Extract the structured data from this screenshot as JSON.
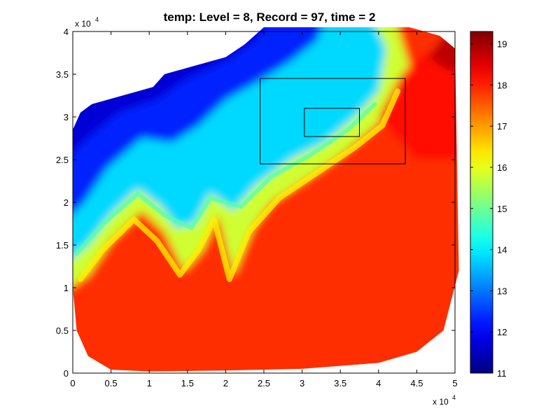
{
  "chart_data": {
    "type": "heatmap",
    "title": "temp:    Level = 8,    Record = 97,    time = 2",
    "xlabel": "",
    "ylabel": "",
    "x_multiplier_label": "x 10",
    "x_multiplier_exp": "4",
    "y_multiplier_label": "x 10",
    "y_multiplier_exp": "4",
    "xlim": [
      0,
      50000
    ],
    "ylim": [
      0,
      40000
    ],
    "x_ticks": [
      0,
      5000,
      10000,
      15000,
      20000,
      25000,
      30000,
      35000,
      40000,
      45000,
      50000
    ],
    "x_tick_labels": [
      "0",
      "0.5",
      "1",
      "1.5",
      "2",
      "2.5",
      "3",
      "3.5",
      "4",
      "4.5",
      "5"
    ],
    "y_ticks": [
      0,
      5000,
      10000,
      15000,
      20000,
      25000,
      30000,
      35000,
      40000
    ],
    "y_tick_labels": [
      "0",
      "0.5",
      "1",
      "1.5",
      "2",
      "2.5",
      "3",
      "3.5",
      "4"
    ],
    "colorbar": {
      "colormap": "jet",
      "clim": [
        11,
        19.3
      ],
      "ticks": [
        11,
        12,
        13,
        14,
        15,
        16,
        17,
        18,
        19
      ],
      "tick_labels": [
        "11",
        "12",
        "13",
        "14",
        "15",
        "16",
        "17",
        "18",
        "19"
      ]
    },
    "domain_outline": [
      [
        0,
        28500
      ],
      [
        1000,
        30500
      ],
      [
        2500,
        31500
      ],
      [
        6500,
        32500
      ],
      [
        10500,
        33500
      ],
      [
        12000,
        35000
      ],
      [
        16000,
        36000
      ],
      [
        20000,
        37000
      ],
      [
        22500,
        38500
      ],
      [
        25000,
        40500
      ],
      [
        35000,
        40500
      ],
      [
        44000,
        40500
      ],
      [
        48000,
        39500
      ],
      [
        50000,
        38000
      ],
      [
        50500,
        12000
      ],
      [
        48500,
        5000
      ],
      [
        45000,
        2500
      ],
      [
        40000,
        1200
      ],
      [
        30000,
        500
      ],
      [
        20000,
        300
      ],
      [
        10000,
        200
      ],
      [
        5000,
        400
      ],
      [
        2000,
        2000
      ],
      [
        500,
        5000
      ],
      [
        0,
        10000
      ]
    ],
    "field_description": "Warm water (17-18.5) covers south and east; cold water (11.5-13) in the northwest; a frontal zone with meanders runs from southwest to north-center.",
    "annotations": [
      {
        "type": "rectangle",
        "x": [
          24500,
          43500
        ],
        "y": [
          24500,
          34500
        ]
      },
      {
        "type": "rectangle",
        "x": [
          30300,
          37500
        ],
        "y": [
          27700,
          31000
        ]
      }
    ]
  },
  "colors": {
    "axis": "#000000",
    "background": "#ffffff",
    "rect_outline": "#000000"
  }
}
